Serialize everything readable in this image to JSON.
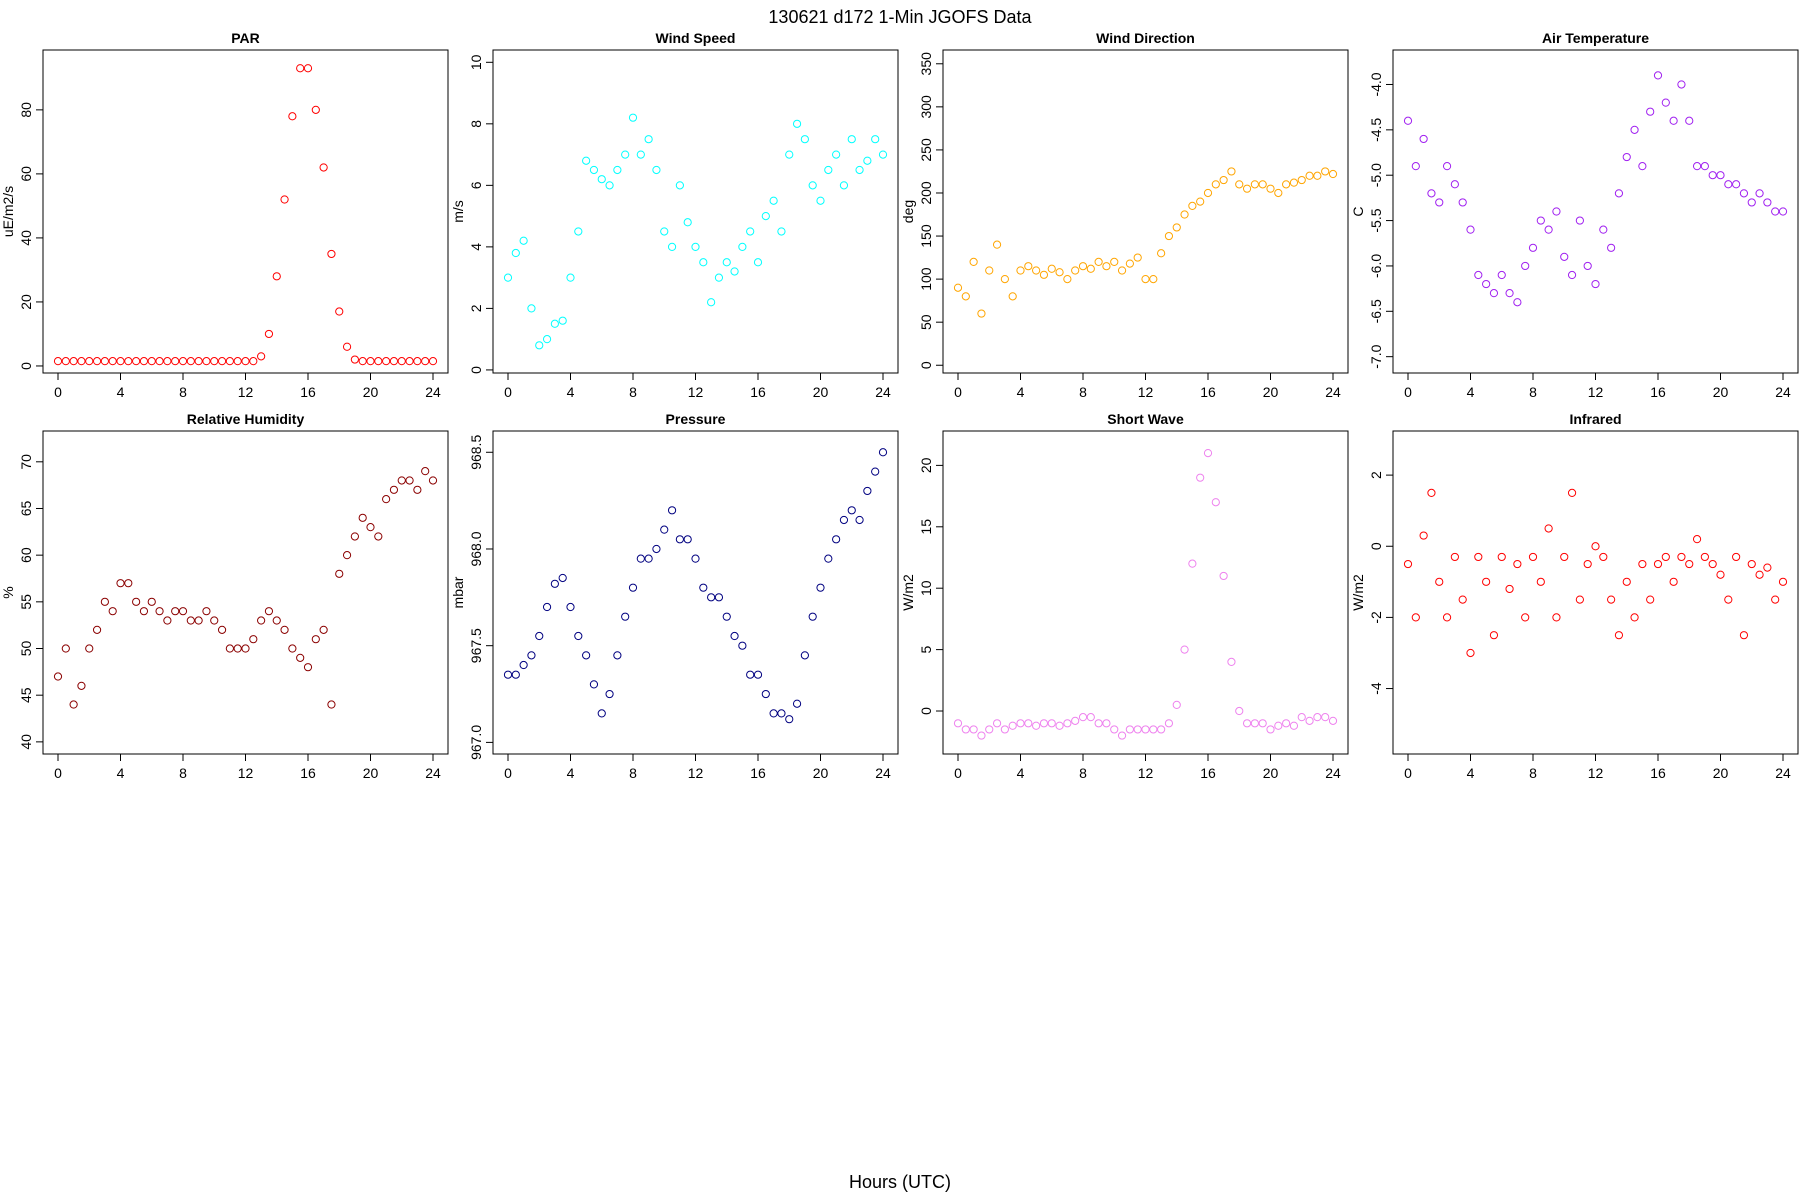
{
  "title": "130621   d172   1-Min  JGOFS Data",
  "xlabel": "Hours (UTC)",
  "chart_data": [
    {
      "type": "scatter",
      "title": "PAR",
      "ylabel": "uE/m2/s",
      "color": "#ff0000",
      "x": [
        0,
        0.5,
        1,
        1.5,
        2,
        2.5,
        3,
        3.5,
        4,
        4.5,
        5,
        5.5,
        6,
        6.5,
        7,
        7.5,
        8,
        8.5,
        9,
        9.5,
        10,
        10.5,
        11,
        11.5,
        12,
        12.5,
        13,
        13.5,
        14,
        14.5,
        15,
        15.5,
        16,
        16.5,
        17,
        17.5,
        18,
        18.5,
        19,
        19.5,
        20,
        20.5,
        21,
        21.5,
        22,
        22.5,
        23,
        23.5,
        24
      ],
      "values": [
        1.5,
        1.5,
        1.5,
        1.5,
        1.5,
        1.5,
        1.5,
        1.5,
        1.5,
        1.5,
        1.5,
        1.5,
        1.5,
        1.5,
        1.5,
        1.5,
        1.5,
        1.5,
        1.5,
        1.5,
        1.5,
        1.5,
        1.5,
        1.5,
        1.5,
        1.5,
        3,
        10,
        28,
        52,
        78,
        93,
        93,
        80,
        62,
        35,
        17,
        6,
        2,
        1.5,
        1.5,
        1.5,
        1.5,
        1.5,
        1.5,
        1.5,
        1.5,
        1.5,
        1.5
      ],
      "xlim": [
        -0.96,
        24.96
      ],
      "xticks": [
        0,
        4,
        8,
        12,
        16,
        20,
        24
      ],
      "ylim": [
        -2.2,
        98.7
      ],
      "yticks": [
        0,
        20,
        40,
        60,
        80
      ]
    },
    {
      "type": "scatter",
      "title": "Wind Speed",
      "ylabel": "m/s",
      "color": "#00ffff",
      "x": [
        0,
        0.5,
        1,
        1.5,
        2,
        2.5,
        3,
        3.5,
        4,
        4.5,
        5,
        5.5,
        6,
        6.5,
        7,
        7.5,
        8,
        8.5,
        9,
        9.5,
        10,
        10.5,
        11,
        11.5,
        12,
        12.5,
        13,
        13.5,
        14,
        14.5,
        15,
        15.5,
        16,
        16.5,
        17,
        17.5,
        18,
        18.5,
        19,
        19.5,
        20,
        20.5,
        21,
        21.5,
        22,
        22.5,
        23,
        23.5,
        24
      ],
      "values": [
        3.0,
        3.8,
        4.2,
        2.0,
        0.8,
        1.0,
        1.5,
        1.6,
        3.0,
        4.5,
        6.8,
        6.5,
        6.2,
        6.0,
        6.5,
        7.0,
        8.2,
        7.0,
        7.5,
        6.5,
        4.5,
        4.0,
        6.0,
        4.8,
        4.0,
        3.5,
        2.2,
        3.0,
        3.5,
        3.2,
        4.0,
        4.5,
        3.5,
        5.0,
        5.5,
        4.5,
        7.0,
        8.0,
        7.5,
        6.0,
        5.5,
        6.5,
        7.0,
        6.0,
        7.5,
        6.5,
        6.8,
        7.5,
        7.0
      ],
      "xlim": [
        -0.96,
        24.96
      ],
      "xticks": [
        0,
        4,
        8,
        12,
        16,
        20,
        24
      ],
      "ylim": [
        -0.1,
        10.4
      ],
      "yticks": [
        0,
        2,
        4,
        6,
        8,
        10
      ]
    },
    {
      "type": "scatter",
      "title": "Wind Direction",
      "ylabel": "deg",
      "color": "#ffa500",
      "x": [
        0,
        0.5,
        1,
        1.5,
        2,
        2.5,
        3,
        3.5,
        4,
        4.5,
        5,
        5.5,
        6,
        6.5,
        7,
        7.5,
        8,
        8.5,
        9,
        9.5,
        10,
        10.5,
        11,
        11.5,
        12,
        12.5,
        13,
        13.5,
        14,
        14.5,
        15,
        15.5,
        16,
        16.5,
        17,
        17.5,
        18,
        18.5,
        19,
        19.5,
        20,
        20.5,
        21,
        21.5,
        22,
        22.5,
        23,
        23.5,
        24
      ],
      "values": [
        90,
        80,
        120,
        60,
        110,
        140,
        100,
        80,
        110,
        115,
        110,
        105,
        112,
        108,
        100,
        110,
        115,
        112,
        120,
        115,
        120,
        110,
        118,
        125,
        100,
        100,
        130,
        150,
        160,
        175,
        185,
        190,
        200,
        210,
        215,
        225,
        210,
        205,
        210,
        210,
        205,
        200,
        210,
        212,
        215,
        220,
        220,
        225,
        222
      ],
      "xlim": [
        -0.96,
        24.96
      ],
      "xticks": [
        0,
        4,
        8,
        12,
        16,
        20,
        24
      ],
      "ylim": [
        -9,
        366
      ],
      "yticks": [
        0,
        50,
        100,
        150,
        200,
        250,
        300,
        350
      ]
    },
    {
      "type": "scatter",
      "title": "Air Temperature",
      "ylabel": "C",
      "color": "#a020f0",
      "x": [
        0,
        0.5,
        1,
        1.5,
        2,
        2.5,
        3,
        3.5,
        4,
        4.5,
        5,
        5.5,
        6,
        6.5,
        7,
        7.5,
        8,
        8.5,
        9,
        9.5,
        10,
        10.5,
        11,
        11.5,
        12,
        12.5,
        13,
        13.5,
        14,
        14.5,
        15,
        15.5,
        16,
        16.5,
        17,
        17.5,
        18,
        18.5,
        19,
        19.5,
        20,
        20.5,
        21,
        21.5,
        22,
        22.5,
        23,
        23.5,
        24
      ],
      "values": [
        -4.4,
        -4.9,
        -4.6,
        -5.2,
        -5.3,
        -4.9,
        -5.1,
        -5.3,
        -5.6,
        -6.1,
        -6.2,
        -6.3,
        -6.1,
        -6.3,
        -6.4,
        -6.0,
        -5.8,
        -5.5,
        -5.6,
        -5.4,
        -5.9,
        -6.1,
        -5.5,
        -6.0,
        -6.2,
        -5.6,
        -5.8,
        -5.2,
        -4.8,
        -4.5,
        -4.9,
        -4.3,
        -3.9,
        -4.2,
        -4.4,
        -4.0,
        -4.4,
        -4.9,
        -4.9,
        -5.0,
        -5.0,
        -5.1,
        -5.1,
        -5.2,
        -5.3,
        -5.2,
        -5.3,
        -5.4,
        -5.4
      ],
      "xlim": [
        -0.96,
        24.96
      ],
      "xticks": [
        0,
        4,
        8,
        12,
        16,
        20,
        24
      ],
      "ylim": [
        -7.18,
        -3.62
      ],
      "yticks": [
        {
          "value": -7,
          "label": "-7.0"
        },
        -6.5,
        {
          "value": -6,
          "label": "-6.0"
        },
        -5.5,
        {
          "value": -5,
          "label": "-5.0"
        },
        -4.5,
        {
          "value": -4,
          "label": "-4.0"
        }
      ]
    },
    {
      "type": "scatter",
      "title": "Relative Humidity",
      "ylabel": "%",
      "color": "#8b0000",
      "x": [
        0,
        0.5,
        1,
        1.5,
        2,
        2.5,
        3,
        3.5,
        4,
        4.5,
        5,
        5.5,
        6,
        6.5,
        7,
        7.5,
        8,
        8.5,
        9,
        9.5,
        10,
        10.5,
        11,
        11.5,
        12,
        12.5,
        13,
        13.5,
        14,
        14.5,
        15,
        15.5,
        16,
        16.5,
        17,
        17.5,
        18,
        18.5,
        19,
        19.5,
        20,
        20.5,
        21,
        21.5,
        22,
        22.5,
        23,
        23.5,
        24
      ],
      "values": [
        47,
        50,
        44,
        46,
        50,
        52,
        55,
        54,
        57,
        57,
        55,
        54,
        55,
        54,
        53,
        54,
        54,
        53,
        53,
        54,
        53,
        52,
        50,
        50,
        50,
        51,
        53,
        54,
        53,
        52,
        50,
        49,
        48,
        51,
        52,
        44,
        58,
        60,
        62,
        64,
        63,
        62,
        66,
        67,
        68,
        68,
        67,
        69,
        68
      ],
      "xlim": [
        -0.96,
        24.96
      ],
      "xticks": [
        0,
        4,
        8,
        12,
        16,
        20,
        24
      ],
      "ylim": [
        38.7,
        73.3
      ],
      "yticks": [
        40,
        45,
        50,
        55,
        60,
        65,
        70
      ]
    },
    {
      "type": "scatter",
      "title": "Pressure",
      "ylabel": "mbar",
      "color": "#000080",
      "x": [
        0,
        0.5,
        1,
        1.5,
        2,
        2.5,
        3,
        3.5,
        4,
        4.5,
        5,
        5.5,
        6,
        6.5,
        7,
        7.5,
        8,
        8.5,
        9,
        9.5,
        10,
        10.5,
        11,
        11.5,
        12,
        12.5,
        13,
        13.5,
        14,
        14.5,
        15,
        15.5,
        16,
        16.5,
        17,
        17.5,
        18,
        18.5,
        19,
        19.5,
        20,
        20.5,
        21,
        21.5,
        22,
        22.5,
        23,
        23.5,
        24
      ],
      "values": [
        967.35,
        967.35,
        967.4,
        967.45,
        967.55,
        967.7,
        967.82,
        967.85,
        967.7,
        967.55,
        967.45,
        967.3,
        967.15,
        967.25,
        967.45,
        967.65,
        967.8,
        967.95,
        967.95,
        968.0,
        968.1,
        968.2,
        968.05,
        968.05,
        967.95,
        967.8,
        967.75,
        967.75,
        967.65,
        967.55,
        967.5,
        967.35,
        967.35,
        967.25,
        967.15,
        967.15,
        967.12,
        967.2,
        967.45,
        967.65,
        967.8,
        967.95,
        968.05,
        968.15,
        968.2,
        968.15,
        968.3,
        968.4,
        968.5
      ],
      "xlim": [
        -0.96,
        24.96
      ],
      "xticks": [
        0,
        4,
        8,
        12,
        16,
        20,
        24
      ],
      "ylim": [
        966.94,
        968.61
      ],
      "yticks": [
        {
          "value": 967,
          "label": "967.0"
        },
        967.5,
        {
          "value": 968,
          "label": "968.0"
        },
        968.5
      ]
    },
    {
      "type": "scatter",
      "title": "Short Wave",
      "ylabel": "W/m2",
      "color": "#ee82ee",
      "x": [
        0,
        0.5,
        1,
        1.5,
        2,
        2.5,
        3,
        3.5,
        4,
        4.5,
        5,
        5.5,
        6,
        6.5,
        7,
        7.5,
        8,
        8.5,
        9,
        9.5,
        10,
        10.5,
        11,
        11.5,
        12,
        12.5,
        13,
        13.5,
        14,
        14.5,
        15,
        15.5,
        16,
        16.5,
        17,
        17.5,
        18,
        18.5,
        19,
        19.5,
        20,
        20.5,
        21,
        21.5,
        22,
        22.5,
        23,
        23.5,
        24
      ],
      "values": [
        -1,
        -1.5,
        -1.5,
        -2,
        -1.5,
        -1,
        -1.5,
        -1.2,
        -1,
        -1,
        -1.2,
        -1,
        -1,
        -1.2,
        -1,
        -0.8,
        -0.5,
        -0.5,
        -1,
        -1,
        -1.5,
        -2,
        -1.5,
        -1.5,
        -1.5,
        -1.5,
        -1.5,
        -1,
        0.5,
        5,
        12,
        19,
        21,
        17,
        11,
        4,
        0,
        -1,
        -1,
        -1,
        -1.5,
        -1.2,
        -1,
        -1.2,
        -0.5,
        -0.8,
        -0.5,
        -0.5,
        -0.8
      ],
      "xlim": [
        -0.96,
        24.96
      ],
      "xticks": [
        0,
        4,
        8,
        12,
        16,
        20,
        24
      ],
      "ylim": [
        -3.5,
        22.8
      ],
      "yticks": [
        0,
        5,
        10,
        15,
        20
      ]
    },
    {
      "type": "scatter",
      "title": "Infrared",
      "ylabel": "W/m2",
      "color": "#ff0000",
      "x": [
        0,
        0.5,
        1,
        1.5,
        2,
        2.5,
        3,
        3.5,
        4,
        4.5,
        5,
        5.5,
        6,
        6.5,
        7,
        7.5,
        8,
        8.5,
        9,
        9.5,
        10,
        10.5,
        11,
        11.5,
        12,
        12.5,
        13,
        13.5,
        14,
        14.5,
        15,
        15.5,
        16,
        16.5,
        17,
        17.5,
        18,
        18.5,
        19,
        19.5,
        20,
        20.5,
        21,
        21.5,
        22,
        22.5,
        23,
        23.5,
        24
      ],
      "values": [
        -0.5,
        -2,
        0.3,
        1.5,
        -1,
        -2,
        -0.3,
        -1.5,
        -3,
        -0.3,
        -1,
        -2.5,
        -0.3,
        -1.2,
        -0.5,
        -2,
        -0.3,
        -1,
        0.5,
        -2,
        -0.3,
        1.5,
        -1.5,
        -0.5,
        0,
        -0.3,
        -1.5,
        -2.5,
        -1,
        -2,
        -0.5,
        -1.5,
        -0.5,
        -0.3,
        -1,
        -0.3,
        -0.5,
        0.2,
        -0.3,
        -0.5,
        -0.8,
        -1.5,
        -0.3,
        -2.5,
        -0.5,
        -0.8,
        -0.6,
        -1.5,
        -1
      ],
      "xlim": [
        -0.96,
        24.96
      ],
      "xticks": [
        0,
        4,
        8,
        12,
        16,
        20,
        24
      ],
      "ylim": [
        -5.84,
        3.24
      ],
      "yticks": [
        -4,
        -2,
        0,
        2
      ]
    }
  ]
}
